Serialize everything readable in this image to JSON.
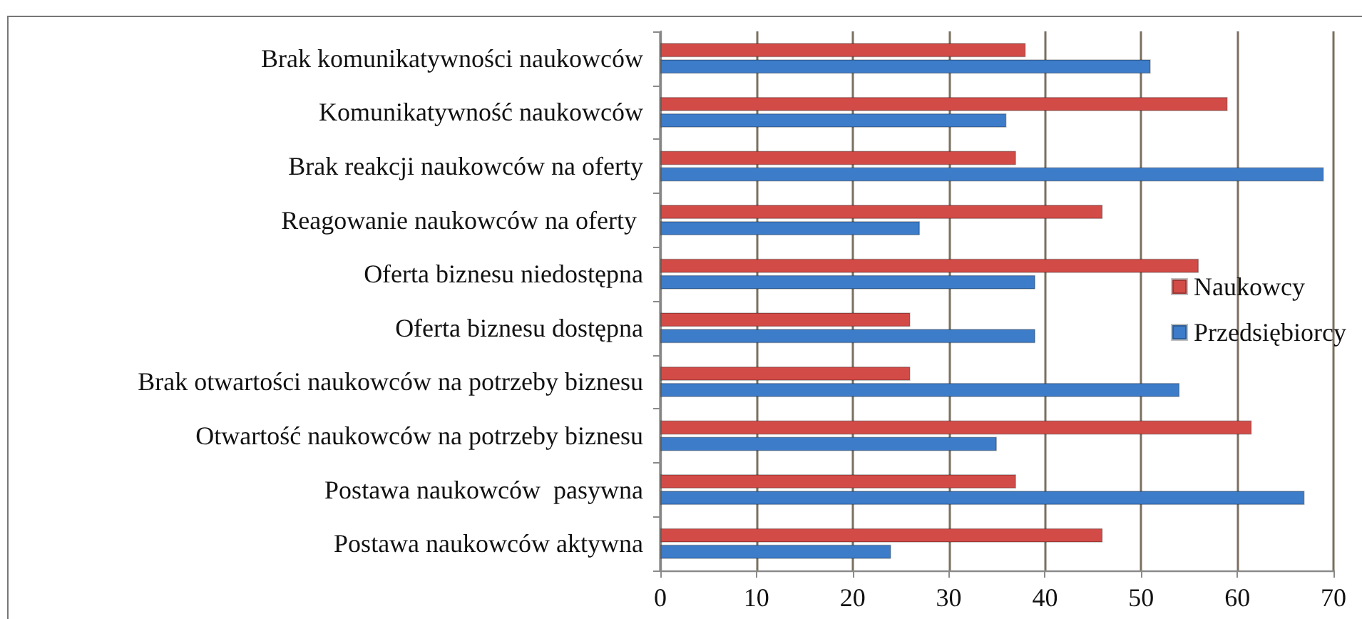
{
  "chart_data": {
    "type": "bar",
    "orientation": "horizontal",
    "categories": [
      "Brak komunikatywności naukowców",
      "Komunikatywność naukowców",
      "Brak reakcji naukowców na oferty",
      "Reagowanie naukowców na oferty ",
      "Oferta biznesu niedostępna",
      "Oferta biznesu dostępna",
      "Brak otwartości naukowców na potrzeby biznesu",
      "Otwartość naukowców na potrzeby biznesu",
      "Postawa naukowców  pasywna",
      "Postawa naukowców aktywna"
    ],
    "series": [
      {
        "name": "Naukowcy",
        "color": "#d34b47",
        "values": [
          38,
          59,
          37,
          46,
          56,
          26,
          26,
          61.5,
          37,
          46
        ]
      },
      {
        "name": "Przedsiębiorcy",
        "color": "#3d7cc9",
        "values": [
          51,
          36,
          69,
          27,
          39,
          39,
          54,
          35,
          67,
          24
        ]
      }
    ],
    "xlim": [
      0,
      70
    ],
    "xticks": [
      0,
      10,
      20,
      30,
      40,
      50,
      60,
      70
    ],
    "grid": "x",
    "legend": "right"
  }
}
